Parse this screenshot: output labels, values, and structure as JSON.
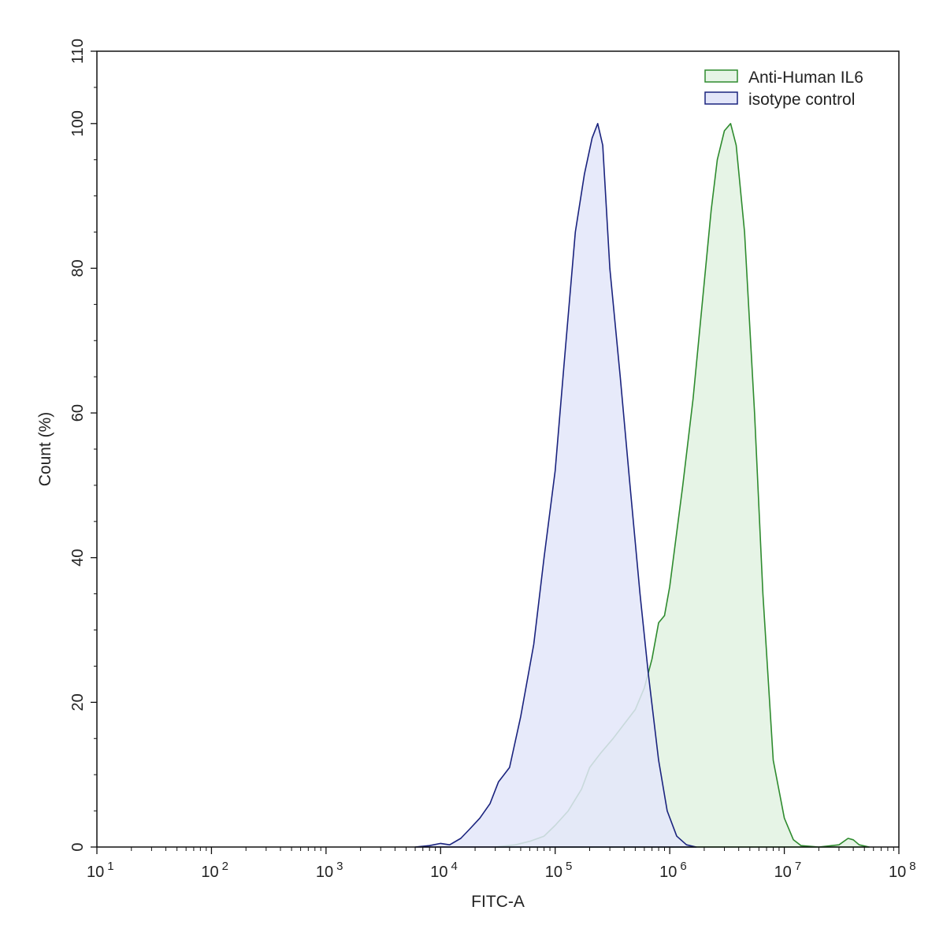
{
  "chart_data": {
    "type": "area",
    "xlabel": "FITC-A",
    "ylabel": "Count  (%)",
    "x_scale": "log",
    "xlim": [
      10,
      100000000
    ],
    "ylim": [
      0,
      110
    ],
    "x_ticks": [
      {
        "base": "10",
        "exp": "1",
        "value": 10
      },
      {
        "base": "10",
        "exp": "2",
        "value": 100
      },
      {
        "base": "10",
        "exp": "3",
        "value": 1000
      },
      {
        "base": "10",
        "exp": "4",
        "value": 10000
      },
      {
        "base": "10",
        "exp": "5",
        "value": 100000
      },
      {
        "base": "10",
        "exp": "6",
        "value": 1000000
      },
      {
        "base": "10",
        "exp": "7",
        "value": 10000000
      },
      {
        "base": "10",
        "exp": "8",
        "value": 100000000
      }
    ],
    "y_ticks": [
      "0",
      "20",
      "40",
      "60",
      "80",
      "100",
      "110"
    ],
    "legend_position": "top-right",
    "series": [
      {
        "name": "Anti-Human IL6",
        "stroke": "#2e8b2e",
        "fill": "#e6f4e6",
        "points": [
          [
            30000,
            0
          ],
          [
            45000,
            0.3
          ],
          [
            60000,
            0.8
          ],
          [
            80000,
            1.5
          ],
          [
            100000,
            3
          ],
          [
            130000,
            5
          ],
          [
            170000,
            8
          ],
          [
            200000,
            11
          ],
          [
            250000,
            13
          ],
          [
            320000,
            15
          ],
          [
            400000,
            17
          ],
          [
            500000,
            19
          ],
          [
            600000,
            22
          ],
          [
            700000,
            26
          ],
          [
            800000,
            31
          ],
          [
            900000,
            32
          ],
          [
            1000000,
            36
          ],
          [
            1300000,
            50
          ],
          [
            1600000,
            62
          ],
          [
            2000000,
            78
          ],
          [
            2300000,
            88
          ],
          [
            2600000,
            95
          ],
          [
            3000000,
            99
          ],
          [
            3400000,
            100
          ],
          [
            3800000,
            97
          ],
          [
            4500000,
            85
          ],
          [
            5500000,
            60
          ],
          [
            6500000,
            35
          ],
          [
            8000000,
            12
          ],
          [
            10000000,
            4
          ],
          [
            12000000,
            1
          ],
          [
            14000000,
            0.2
          ],
          [
            20000000,
            0
          ],
          [
            30000000,
            0.3
          ],
          [
            36000000,
            1.2
          ],
          [
            40000000,
            1
          ],
          [
            45000000,
            0.3
          ],
          [
            55000000,
            0
          ]
        ]
      },
      {
        "name": "isotype control",
        "stroke": "#1a237e",
        "fill": "#e3e6f9",
        "points": [
          [
            6000,
            0
          ],
          [
            8000,
            0.2
          ],
          [
            10000,
            0.5
          ],
          [
            12000,
            0.3
          ],
          [
            15000,
            1.2
          ],
          [
            18000,
            2.5
          ],
          [
            22000,
            4
          ],
          [
            27000,
            6
          ],
          [
            32000,
            9
          ],
          [
            40000,
            11
          ],
          [
            50000,
            18
          ],
          [
            65000,
            28
          ],
          [
            80000,
            40
          ],
          [
            100000,
            52
          ],
          [
            120000,
            67
          ],
          [
            150000,
            85
          ],
          [
            180000,
            93
          ],
          [
            210000,
            98
          ],
          [
            235000,
            100
          ],
          [
            260000,
            97
          ],
          [
            300000,
            80
          ],
          [
            370000,
            65
          ],
          [
            450000,
            50
          ],
          [
            550000,
            35
          ],
          [
            650000,
            24
          ],
          [
            800000,
            12
          ],
          [
            950000,
            5
          ],
          [
            1150000,
            1.5
          ],
          [
            1400000,
            0.3
          ],
          [
            1700000,
            0
          ]
        ]
      }
    ]
  }
}
